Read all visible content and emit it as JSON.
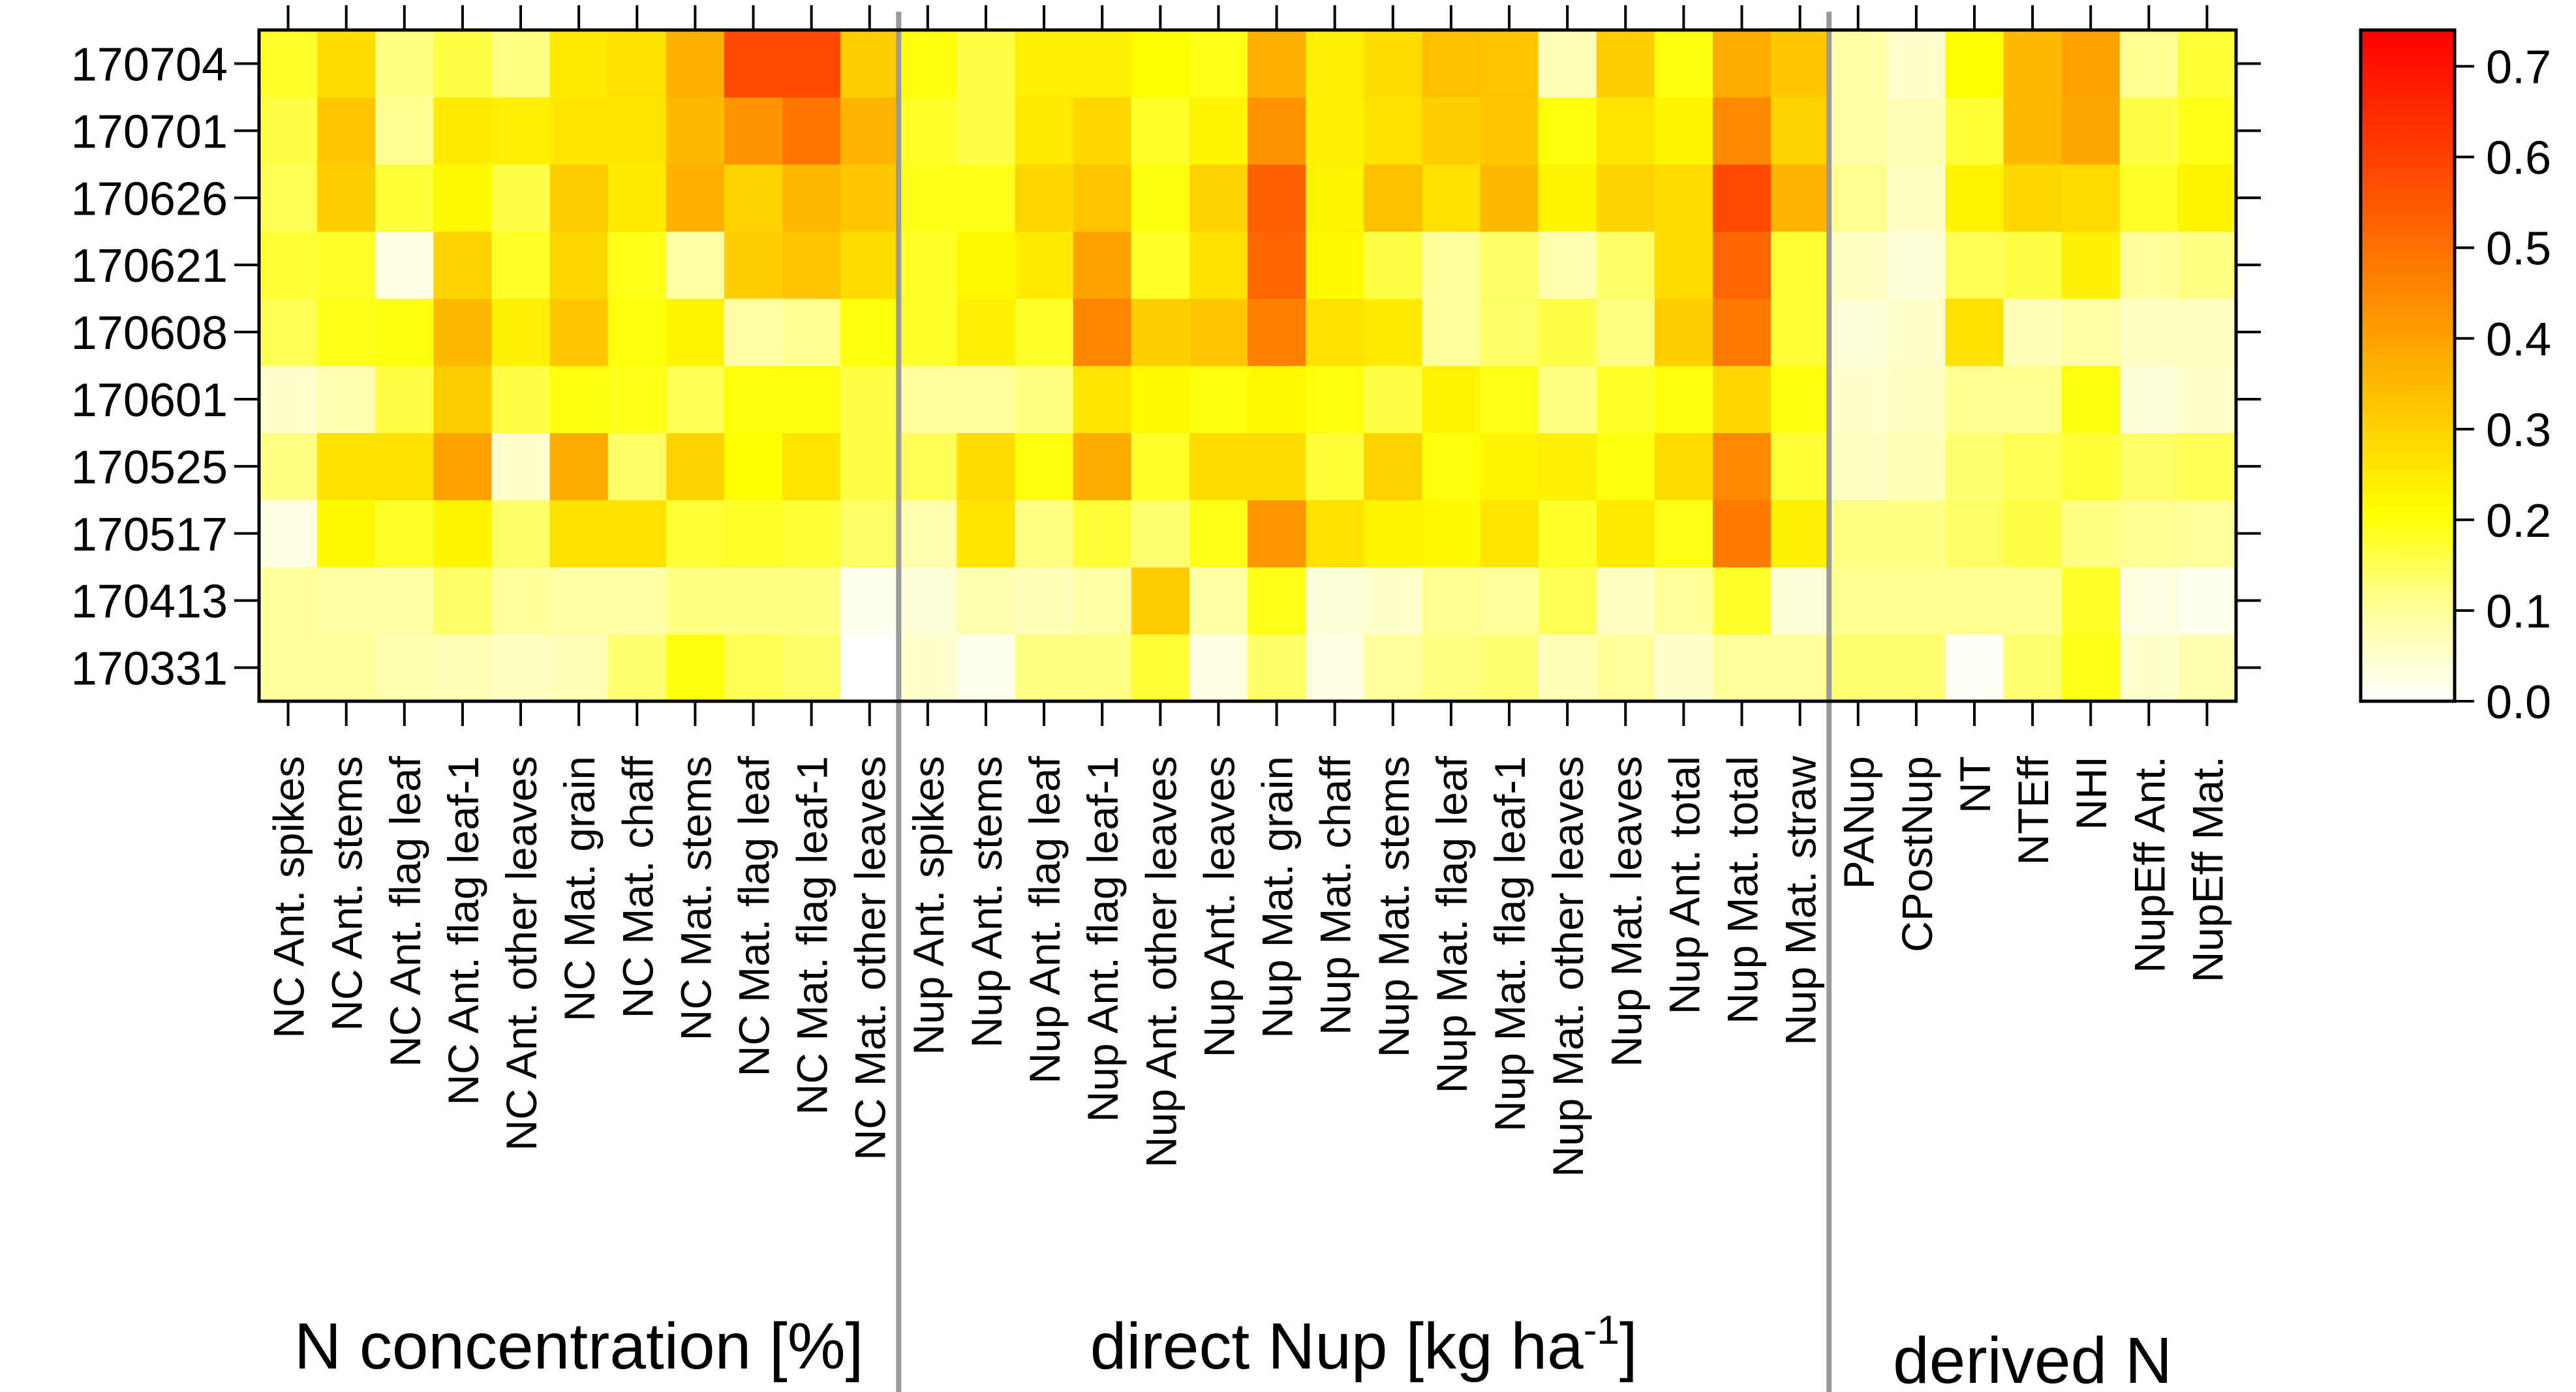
{
  "chart_data": {
    "type": "heatmap",
    "title": "",
    "rows": [
      "170331",
      "170413",
      "170517",
      "170525",
      "170601",
      "170608",
      "170621",
      "170626",
      "170701",
      "170704"
    ],
    "columns": [
      "NC Ant. spikes",
      "NC Ant. stems",
      "NC Ant. flag leaf",
      "NC Ant. flag leaf-1",
      "NC Ant. other leaves",
      "NC Mat. grain",
      "NC Mat. chaff",
      "NC Mat. stems",
      "NC Mat. flag leaf",
      "NC Mat. flag leaf-1",
      "NC Mat. other leaves",
      "Nup Ant. spikes",
      "Nup Ant. stems",
      "Nup Ant. flag leaf",
      "Nup Ant. flag leaf-1",
      "Nup Ant. other leaves",
      "Nup Ant. leaves",
      "Nup Mat. grain",
      "Nup Mat. chaff",
      "Nup Mat. stems",
      "Nup Mat. flag leaf",
      "Nup Mat. flag leaf-1",
      "Nup Mat. other leaves",
      "Nup Mat. leaves",
      "Nup Ant. total",
      "Nup Mat. total",
      "Nup Mat. straw",
      "PANup",
      "CPostNup",
      "NT",
      "NTEff",
      "NHI",
      "NupEff Ant.",
      "NupEff Mat."
    ],
    "groups": [
      {
        "label": "N concentration [%]",
        "count": 11
      },
      {
        "label_main": "direct Nup [kg ha",
        "label_sup": "-1",
        "label_end": "]",
        "count": 16
      },
      {
        "label": "derived N",
        "count": 7
      }
    ],
    "colorbar": {
      "min": 0.0,
      "max": 0.74,
      "ticks": [
        "0.0",
        "0.1",
        "0.2",
        "0.3",
        "0.4",
        "0.5",
        "0.6",
        "0.7"
      ],
      "colormap": "heat (white-yellow-orange-red)"
    },
    "values": [
      [
        0.1,
        0.1,
        0.08,
        0.07,
        0.06,
        0.07,
        0.13,
        0.2,
        0.15,
        0.14,
        0.0,
        0.05,
        0.02,
        0.12,
        0.12,
        0.17,
        0.03,
        0.14,
        0.03,
        0.1,
        0.12,
        0.13,
        0.07,
        0.1,
        0.05,
        0.1,
        0.1,
        0.13,
        0.13,
        0.01,
        0.13,
        0.19,
        0.05,
        0.08
      ],
      [
        0.1,
        0.09,
        0.09,
        0.14,
        0.1,
        0.09,
        0.09,
        0.12,
        0.12,
        0.12,
        0.02,
        0.04,
        0.08,
        0.07,
        0.09,
        0.31,
        0.09,
        0.19,
        0.04,
        0.05,
        0.11,
        0.1,
        0.15,
        0.06,
        0.1,
        0.18,
        0.04,
        0.11,
        0.11,
        0.11,
        0.11,
        0.18,
        0.03,
        0.02
      ],
      [
        0.03,
        0.22,
        0.18,
        0.23,
        0.14,
        0.27,
        0.27,
        0.17,
        0.18,
        0.17,
        0.14,
        0.08,
        0.26,
        0.12,
        0.17,
        0.13,
        0.19,
        0.42,
        0.27,
        0.23,
        0.22,
        0.26,
        0.18,
        0.25,
        0.19,
        0.48,
        0.24,
        0.12,
        0.12,
        0.14,
        0.16,
        0.12,
        0.11,
        0.1
      ],
      [
        0.12,
        0.27,
        0.27,
        0.4,
        0.05,
        0.38,
        0.14,
        0.3,
        0.21,
        0.26,
        0.16,
        0.15,
        0.28,
        0.2,
        0.38,
        0.18,
        0.28,
        0.28,
        0.17,
        0.3,
        0.2,
        0.23,
        0.24,
        0.2,
        0.28,
        0.45,
        0.17,
        0.06,
        0.07,
        0.13,
        0.15,
        0.17,
        0.14,
        0.15
      ],
      [
        0.05,
        0.08,
        0.16,
        0.31,
        0.16,
        0.2,
        0.19,
        0.15,
        0.2,
        0.2,
        0.16,
        0.1,
        0.1,
        0.12,
        0.26,
        0.22,
        0.2,
        0.22,
        0.2,
        0.16,
        0.23,
        0.19,
        0.12,
        0.18,
        0.2,
        0.29,
        0.2,
        0.05,
        0.06,
        0.11,
        0.11,
        0.2,
        0.04,
        0.05
      ],
      [
        0.15,
        0.19,
        0.2,
        0.35,
        0.24,
        0.32,
        0.2,
        0.23,
        0.09,
        0.11,
        0.2,
        0.18,
        0.24,
        0.18,
        0.46,
        0.31,
        0.32,
        0.47,
        0.27,
        0.25,
        0.1,
        0.14,
        0.16,
        0.12,
        0.31,
        0.48,
        0.17,
        0.04,
        0.05,
        0.27,
        0.07,
        0.09,
        0.06,
        0.06
      ],
      [
        0.17,
        0.18,
        0.03,
        0.3,
        0.18,
        0.29,
        0.19,
        0.09,
        0.31,
        0.33,
        0.28,
        0.18,
        0.22,
        0.25,
        0.4,
        0.18,
        0.27,
        0.52,
        0.22,
        0.16,
        0.1,
        0.14,
        0.08,
        0.14,
        0.28,
        0.52,
        0.17,
        0.06,
        0.04,
        0.15,
        0.16,
        0.24,
        0.1,
        0.12
      ],
      [
        0.15,
        0.31,
        0.17,
        0.22,
        0.16,
        0.31,
        0.25,
        0.37,
        0.3,
        0.35,
        0.32,
        0.19,
        0.19,
        0.29,
        0.33,
        0.2,
        0.3,
        0.53,
        0.23,
        0.34,
        0.27,
        0.35,
        0.23,
        0.3,
        0.28,
        0.58,
        0.36,
        0.11,
        0.06,
        0.23,
        0.29,
        0.28,
        0.18,
        0.23
      ],
      [
        0.16,
        0.32,
        0.11,
        0.25,
        0.24,
        0.26,
        0.26,
        0.35,
        0.43,
        0.49,
        0.36,
        0.18,
        0.16,
        0.25,
        0.29,
        0.18,
        0.23,
        0.43,
        0.24,
        0.27,
        0.31,
        0.32,
        0.2,
        0.26,
        0.23,
        0.45,
        0.3,
        0.09,
        0.07,
        0.17,
        0.35,
        0.39,
        0.16,
        0.19
      ],
      [
        0.18,
        0.28,
        0.12,
        0.16,
        0.12,
        0.25,
        0.27,
        0.37,
        0.58,
        0.58,
        0.31,
        0.2,
        0.16,
        0.24,
        0.24,
        0.21,
        0.19,
        0.37,
        0.24,
        0.28,
        0.34,
        0.33,
        0.07,
        0.31,
        0.2,
        0.38,
        0.32,
        0.09,
        0.05,
        0.21,
        0.35,
        0.4,
        0.11,
        0.17
      ]
    ]
  }
}
